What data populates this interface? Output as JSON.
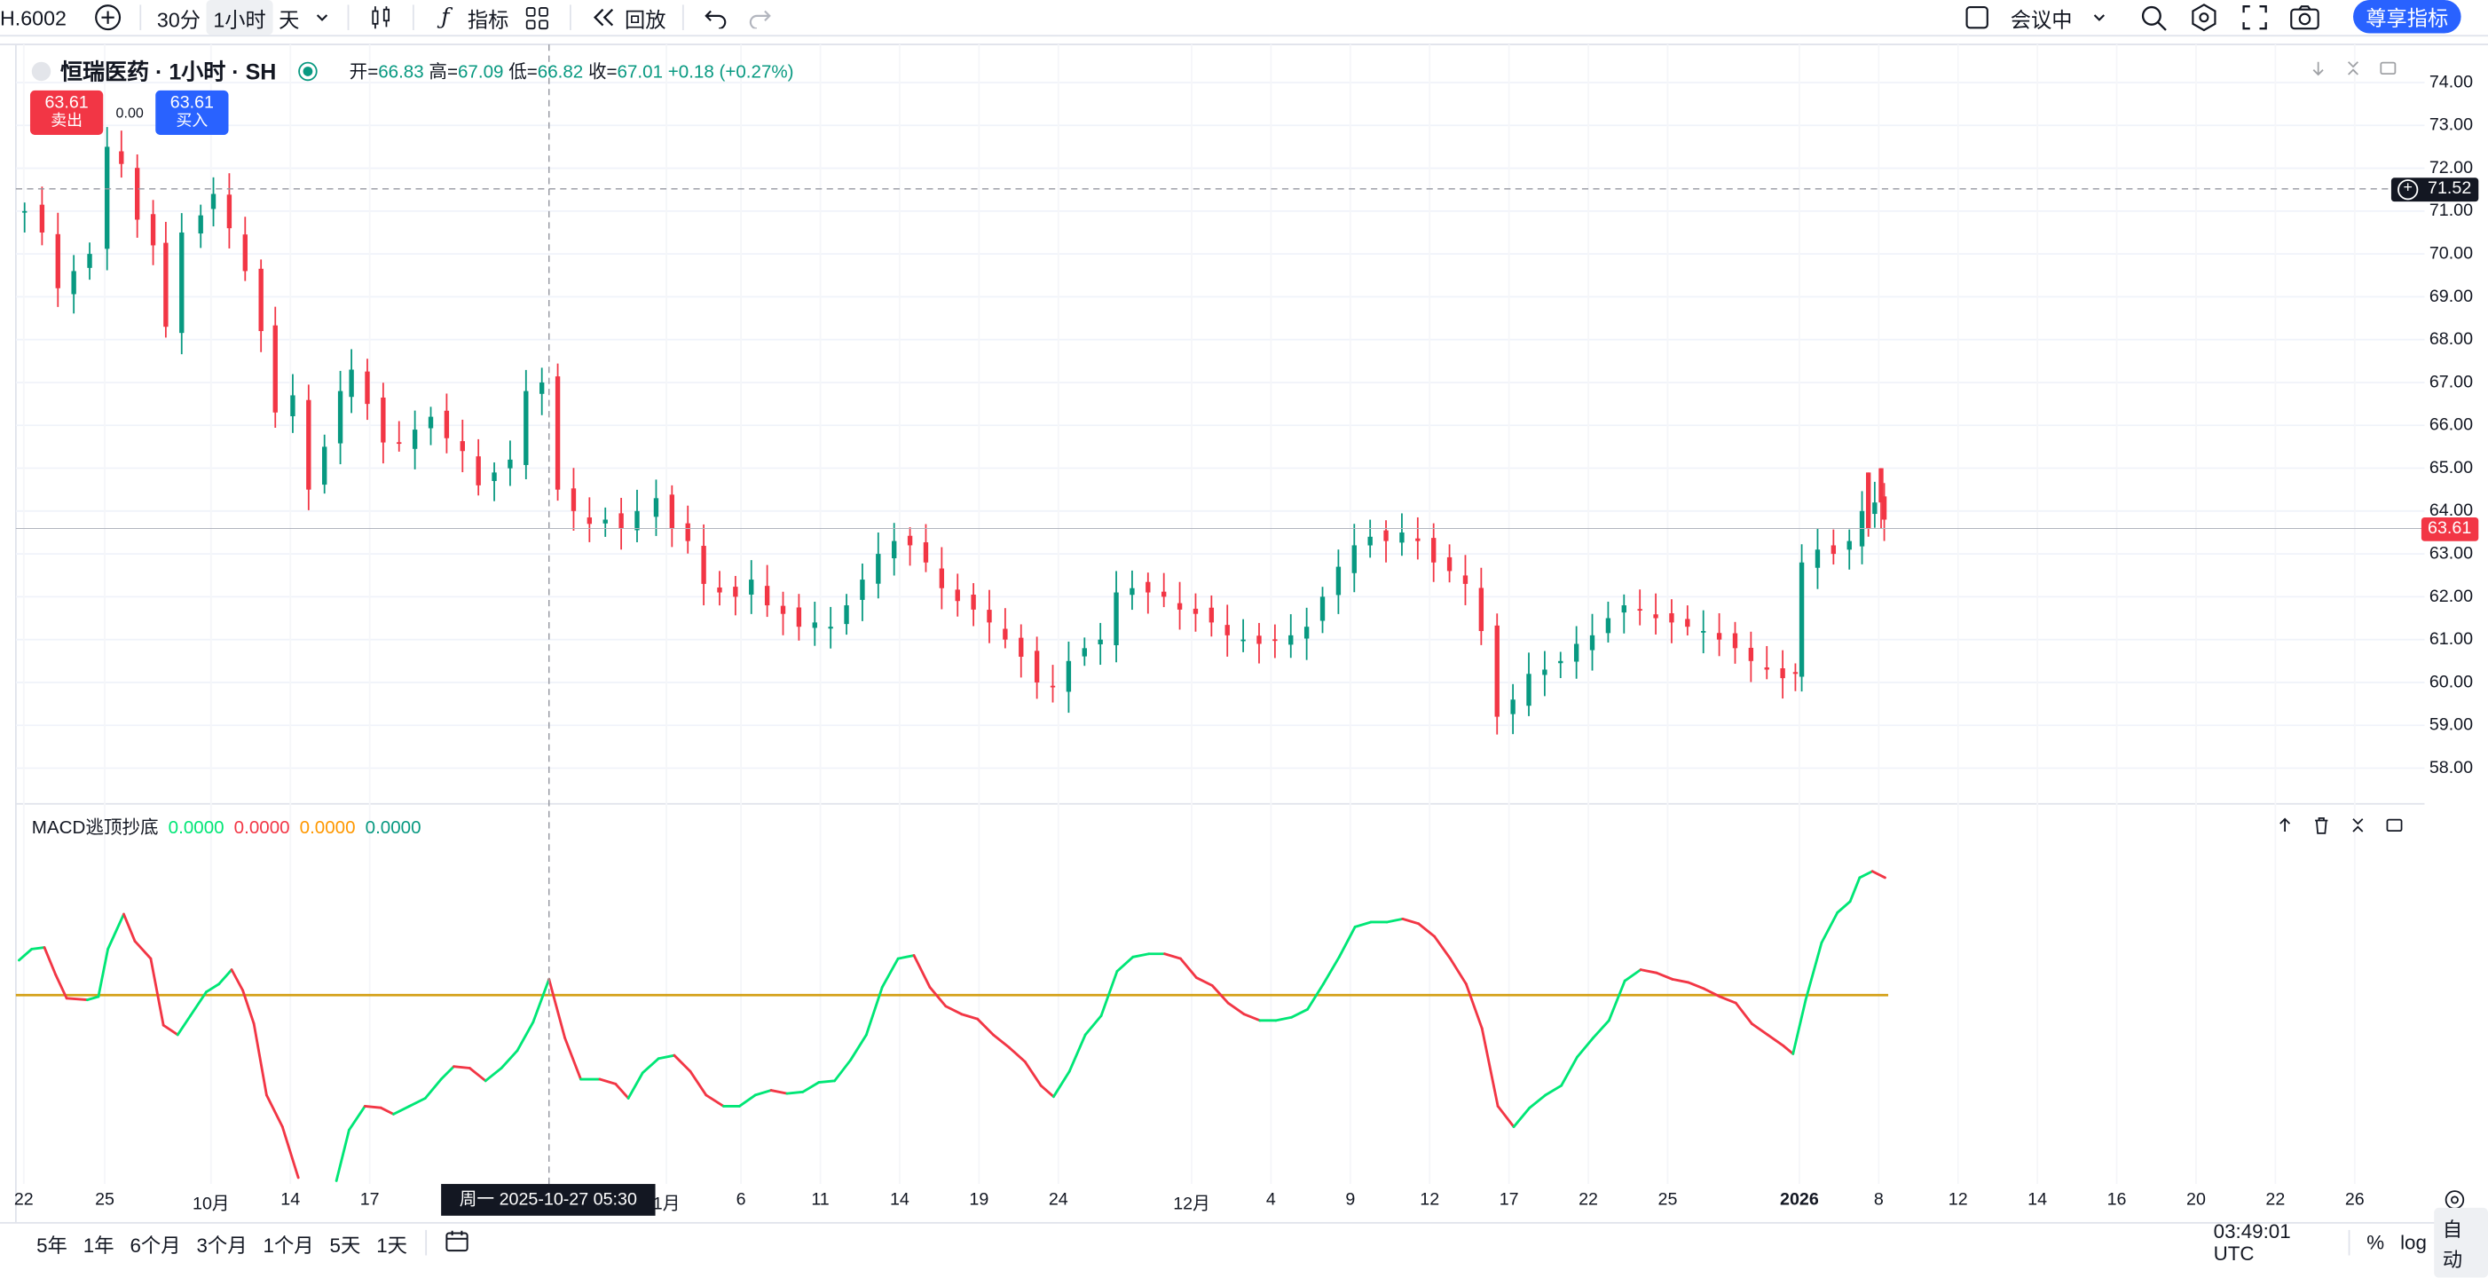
{
  "toolbar": {
    "symbol": "H.6002",
    "intervals": [
      "30分",
      "1小时",
      "天"
    ],
    "active_interval": "1小时",
    "indicators_label": "指标",
    "replay_label": "回放",
    "layout_label": "会议中",
    "premium_label": "尊享指标"
  },
  "legend": {
    "symbol_title": "恒瑞医药 · 1小时 · SH",
    "open_label": "开",
    "open": "66.83",
    "high_label": "高",
    "high": "67.09",
    "low_label": "低",
    "low": "66.82",
    "close_label": "收",
    "close": "67.01",
    "change": "+0.18 (+0.27%)"
  },
  "trade": {
    "sell_price": "63.61",
    "sell_label": "卖出",
    "spread": "0.00",
    "buy_price": "63.61",
    "buy_label": "买入"
  },
  "price_axis": {
    "labels": [
      "74.00",
      "73.00",
      "72.00",
      "71.00",
      "70.00",
      "69.00",
      "68.00",
      "67.00",
      "66.00",
      "65.00",
      "64.00",
      "63.00",
      "62.00",
      "61.00",
      "60.00",
      "59.00",
      "58.00"
    ],
    "crosshair_price": "71.52",
    "last_price": "63.61"
  },
  "macd": {
    "title": "MACD逃顶抄底",
    "values": [
      "0.0000",
      "0.0000",
      "0.0000",
      "0.0000"
    ],
    "colors": [
      "#00e676",
      "#f23645",
      "#ff9800",
      "#089981"
    ]
  },
  "time_axis": {
    "labels": [
      "22",
      "25",
      "10月",
      "14",
      "17",
      "周一 2025-10-27  05:30",
      "1月",
      "6",
      "11",
      "14",
      "19",
      "24",
      "12月",
      "4",
      "9",
      "12",
      "17",
      "22",
      "25",
      "2026",
      "8",
      "12",
      "14",
      "16",
      "20",
      "22",
      "26"
    ],
    "crosshair_label": "周一 2025-10-27  05:30"
  },
  "bottombar": {
    "ranges": [
      "5年",
      "1年",
      "6个月",
      "3个月",
      "1个月",
      "5天",
      "1天"
    ],
    "clock": "03:49:01 UTC",
    "percent_label": "%",
    "log_label": "log",
    "auto_label": "自动"
  },
  "colors": {
    "up": "#089981",
    "down": "#f23645",
    "accent": "#2962ff",
    "zero_line": "#d4a017"
  }
}
